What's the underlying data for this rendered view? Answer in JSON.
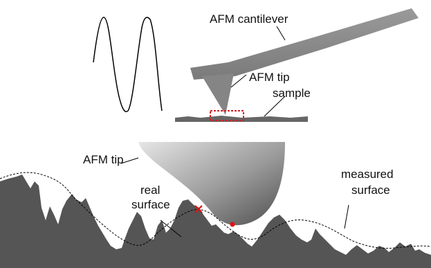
{
  "labels": {
    "cantilever": "AFM cantilever",
    "tip_top": "AFM tip",
    "sample": "sample",
    "tip_zoom": "AFM tip",
    "real_surface_1": "real",
    "real_surface_2": "surface",
    "measured_surface_1": "measured",
    "measured_surface_2": "surface"
  },
  "colors": {
    "surface": "#555555",
    "cantilever": "#8c8c8c",
    "marker": "#e01010",
    "line": "#000000",
    "highlight_box": "#d42020",
    "tip_gradient_light": "#dcdcdc",
    "tip_gradient_dark": "#5a5a5a"
  },
  "markers": {
    "contact_point": "x-mark",
    "tip_apex": "dot"
  }
}
